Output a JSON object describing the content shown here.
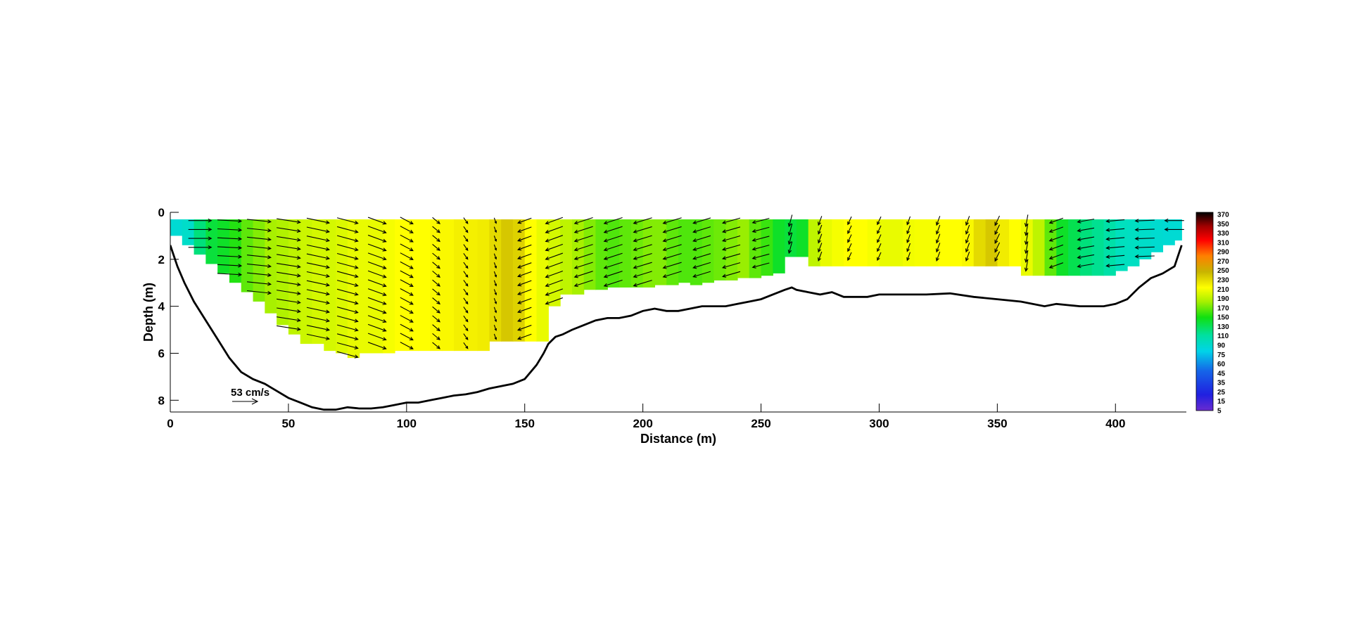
{
  "chart_data": {
    "type": "heatmap",
    "title": "",
    "xlabel": "Distance (m)",
    "ylabel": "Depth (m)",
    "xlim": [
      0,
      430
    ],
    "ylim": [
      0,
      8.5
    ],
    "y_reversed": true,
    "x_ticks": [
      "0",
      "50",
      "100",
      "150",
      "200",
      "250",
      "300",
      "350",
      "400"
    ],
    "y_ticks": [
      "0",
      "2",
      "4",
      "6",
      "8"
    ],
    "colorbar_ticks": [
      "370",
      "350",
      "330",
      "310",
      "290",
      "270",
      "250",
      "230",
      "210",
      "190",
      "170",
      "150",
      "130",
      "110",
      "90",
      "75",
      "60",
      "45",
      "35",
      "25",
      "15",
      "5"
    ],
    "velocity_scale": {
      "label": "53 cm/s",
      "value": 53
    },
    "bathymetry": {
      "x": [
        0,
        3,
        6,
        10,
        15,
        20,
        25,
        30,
        35,
        40,
        45,
        50,
        55,
        60,
        65,
        70,
        75,
        80,
        85,
        90,
        95,
        100,
        105,
        110,
        115,
        120,
        125,
        130,
        135,
        140,
        145,
        150,
        155,
        158,
        160,
        163,
        166,
        170,
        175,
        180,
        185,
        190,
        195,
        200,
        205,
        210,
        215,
        220,
        225,
        230,
        235,
        240,
        245,
        250,
        255,
        260,
        263,
        265,
        270,
        275,
        280,
        285,
        290,
        295,
        300,
        310,
        320,
        330,
        340,
        350,
        360,
        370,
        375,
        380,
        385,
        390,
        395,
        400,
        405,
        410,
        415,
        420,
        425,
        428
      ],
      "depth": [
        1.4,
        2.3,
        3.0,
        3.8,
        4.6,
        5.4,
        6.2,
        6.8,
        7.1,
        7.3,
        7.6,
        7.9,
        8.1,
        8.3,
        8.4,
        8.4,
        8.3,
        8.35,
        8.35,
        8.3,
        8.2,
        8.1,
        8.1,
        8.0,
        7.9,
        7.8,
        7.75,
        7.65,
        7.5,
        7.4,
        7.3,
        7.1,
        6.5,
        6.0,
        5.6,
        5.3,
        5.2,
        5.0,
        4.8,
        4.6,
        4.5,
        4.5,
        4.4,
        4.2,
        4.1,
        4.2,
        4.2,
        4.1,
        4.0,
        4.0,
        4.0,
        3.9,
        3.8,
        3.7,
        3.5,
        3.3,
        3.2,
        3.3,
        3.4,
        3.5,
        3.4,
        3.6,
        3.6,
        3.6,
        3.5,
        3.5,
        3.5,
        3.45,
        3.6,
        3.7,
        3.8,
        4.0,
        3.9,
        3.95,
        4.0,
        4.0,
        4.0,
        3.9,
        3.7,
        3.2,
        2.8,
        2.6,
        2.3,
        1.4
      ]
    },
    "cells": {
      "x": [
        0,
        5,
        10,
        15,
        20,
        25,
        30,
        35,
        40,
        45,
        50,
        55,
        60,
        65,
        70,
        75,
        80,
        85,
        90,
        95,
        100,
        105,
        110,
        115,
        120,
        125,
        130,
        135,
        140,
        145,
        150,
        155,
        160,
        165,
        170,
        175,
        180,
        185,
        190,
        195,
        200,
        205,
        210,
        215,
        220,
        225,
        230,
        235,
        240,
        245,
        250,
        255,
        260,
        265,
        270,
        275,
        280,
        285,
        290,
        295,
        300,
        305,
        310,
        315,
        320,
        325,
        330,
        335,
        340,
        345,
        350,
        355,
        360,
        365,
        370,
        375,
        380,
        385,
        390,
        395,
        400,
        405,
        410,
        415,
        420,
        425
      ],
      "bottom_depth": [
        1.0,
        1.4,
        1.8,
        2.2,
        2.6,
        3.0,
        3.4,
        3.8,
        4.3,
        4.8,
        5.2,
        5.6,
        5.6,
        5.9,
        6.0,
        6.2,
        6.0,
        6.0,
        6.0,
        5.9,
        5.9,
        5.9,
        5.9,
        5.9,
        5.9,
        5.9,
        5.9,
        5.5,
        5.5,
        5.5,
        5.5,
        5.5,
        4.0,
        3.5,
        3.5,
        3.3,
        3.3,
        3.2,
        3.2,
        3.2,
        3.2,
        3.1,
        3.1,
        3.0,
        3.1,
        3.0,
        2.9,
        2.9,
        2.8,
        2.8,
        2.7,
        2.6,
        1.9,
        1.9,
        2.3,
        2.3,
        2.3,
        2.3,
        2.3,
        2.3,
        2.3,
        2.3,
        2.3,
        2.3,
        2.3,
        2.3,
        2.3,
        2.3,
        2.3,
        2.3,
        2.3,
        2.3,
        2.7,
        2.7,
        2.7,
        2.7,
        2.7,
        2.7,
        2.7,
        2.7,
        2.5,
        2.3,
        2.0,
        1.7,
        1.4,
        1.2
      ],
      "value": [
        120,
        125,
        145,
        160,
        165,
        172,
        180,
        185,
        190,
        192,
        195,
        198,
        200,
        200,
        202,
        205,
        205,
        205,
        208,
        210,
        210,
        210,
        212,
        212,
        214,
        214,
        215,
        220,
        225,
        222,
        210,
        205,
        200,
        195,
        190,
        185,
        180,
        178,
        180,
        182,
        185,
        185,
        180,
        178,
        178,
        180,
        182,
        185,
        188,
        180,
        175,
        165,
        160,
        165,
        195,
        205,
        208,
        210,
        210,
        208,
        205,
        205,
        207,
        208,
        208,
        210,
        210,
        212,
        220,
        225,
        215,
        210,
        205,
        195,
        180,
        165,
        155,
        145,
        140,
        135,
        130,
        128,
        125,
        122,
        120,
        120
      ]
    },
    "vectors": {
      "x": [
        12.5,
        25,
        37.5,
        50,
        62.5,
        75,
        87.5,
        100,
        112.5,
        125,
        137.5,
        150,
        162.5,
        175,
        187.5,
        200,
        212.5,
        225,
        237.5,
        250,
        262.5,
        275,
        287.5,
        300,
        312.5,
        325,
        337.5,
        350,
        362.5,
        375,
        387.5,
        400,
        412.5,
        425
      ],
      "angle_deg": [
        0,
        3,
        6,
        9,
        12,
        15,
        20,
        28,
        40,
        55,
        70,
        160,
        160,
        162,
        162,
        163,
        163,
        163,
        164,
        165,
        105,
        110,
        115,
        115,
        110,
        110,
        110,
        115,
        100,
        160,
        170,
        175,
        178,
        180
      ],
      "speed_cm_s": [
        48,
        50,
        50,
        50,
        48,
        45,
        40,
        30,
        20,
        15,
        12,
        30,
        38,
        40,
        40,
        40,
        40,
        38,
        38,
        36,
        25,
        20,
        18,
        18,
        18,
        20,
        20,
        22,
        25,
        30,
        35,
        38,
        40,
        40
      ]
    }
  }
}
